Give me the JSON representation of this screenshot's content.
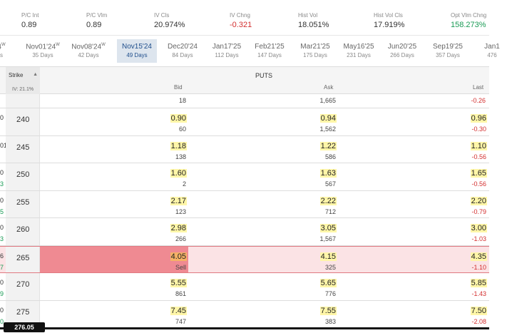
{
  "stats": [
    {
      "label": "P/C Int",
      "value": "0.89",
      "tone": "normal"
    },
    {
      "label": "P/C Vlm",
      "value": "0.89",
      "tone": "normal"
    },
    {
      "label": "IV Cls",
      "value": "20.974%",
      "tone": "normal"
    },
    {
      "label": "IV Chng",
      "value": "-0.321",
      "tone": "neg"
    },
    {
      "label": "Hist Vol",
      "value": "18.051%",
      "tone": "normal"
    },
    {
      "label": "Hist Vol Cls",
      "value": "17.919%",
      "tone": "normal"
    },
    {
      "label": "Opt Vlm Chng",
      "value": "158.273%",
      "tone": "pos"
    }
  ],
  "expirations": [
    {
      "date": "4",
      "weekly": "W",
      "days": "s"
    },
    {
      "date": "Nov01'24",
      "weekly": "W",
      "days": "35 Days"
    },
    {
      "date": "Nov08'24",
      "weekly": "W",
      "days": "42 Days"
    },
    {
      "date": "Nov15'24",
      "weekly": "",
      "days": "49 Days",
      "active": true
    },
    {
      "date": "Dec20'24",
      "weekly": "",
      "days": "84 Days"
    },
    {
      "date": "Jan17'25",
      "weekly": "",
      "days": "112 Days"
    },
    {
      "date": "Feb21'25",
      "weekly": "",
      "days": "147 Days"
    },
    {
      "date": "Mar21'25",
      "weekly": "",
      "days": "175 Days"
    },
    {
      "date": "May16'25",
      "weekly": "",
      "days": "231 Days"
    },
    {
      "date": "Jun20'25",
      "weekly": "",
      "days": "266 Days"
    },
    {
      "date": "Sep19'25",
      "weekly": "",
      "days": "357 Days"
    },
    {
      "date": "Jan1",
      "weekly": "",
      "days": "476"
    }
  ],
  "table": {
    "strike_label": "Strike",
    "sort_icon": "sort-icon",
    "iv_label": "IV: 21.1%",
    "section_title": "PUTS",
    "columns": {
      "bid": "Bid",
      "ask": "Ask",
      "last": "Last"
    },
    "top_partial": {
      "bid_size": "18",
      "ask_size": "1,665",
      "change": "-0.26"
    },
    "rows": [
      {
        "left_a": "0",
        "left_b": "",
        "strike": "240",
        "bid": "0.90",
        "bid_size": "60",
        "ask": "0.94",
        "ask_size": "1,562",
        "last": "0.96",
        "change": "-0.30"
      },
      {
        "left_a": "01",
        "left_b": "",
        "strike": "245",
        "bid": "1.18",
        "bid_size": "138",
        "ask": "1.22",
        "ask_size": "586",
        "last": "1.10",
        "change": "-0.56"
      },
      {
        "left_a": "0",
        "left_b": "3",
        "strike": "250",
        "bid": "1.60",
        "bid_size": "2",
        "ask": "1.63",
        "ask_size": "567",
        "last": "1.65",
        "change": "-0.56"
      },
      {
        "left_a": "0",
        "left_b": "5",
        "strike": "255",
        "bid": "2.17",
        "bid_size": "123",
        "ask": "2.22",
        "ask_size": "712",
        "last": "2.20",
        "change": "-0.79"
      },
      {
        "left_a": "0",
        "left_b": "3",
        "strike": "260",
        "bid": "2.98",
        "bid_size": "266",
        "ask": "3.05",
        "ask_size": "1,567",
        "last": "3.00",
        "change": "-1.03"
      },
      {
        "left_a": "6",
        "left_b": "7",
        "strike": "265",
        "bid": "4.05",
        "bid_size": "Sell",
        "ask": "4.15",
        "ask_size": "325",
        "last": "4.35",
        "change": "-1.10",
        "selected": true
      },
      {
        "left_a": "0",
        "left_b": "9",
        "strike": "270",
        "bid": "5.55",
        "bid_size": "861",
        "ask": "5.65",
        "ask_size": "776",
        "last": "5.85",
        "change": "-1.43"
      },
      {
        "left_a": "0",
        "left_b": "0",
        "strike": "275",
        "bid": "7.45",
        "bid_size": "747",
        "ask": "7.55",
        "ask_size": "383",
        "last": "7.50",
        "change": "-2.08"
      }
    ]
  },
  "price_marker": "276.05"
}
